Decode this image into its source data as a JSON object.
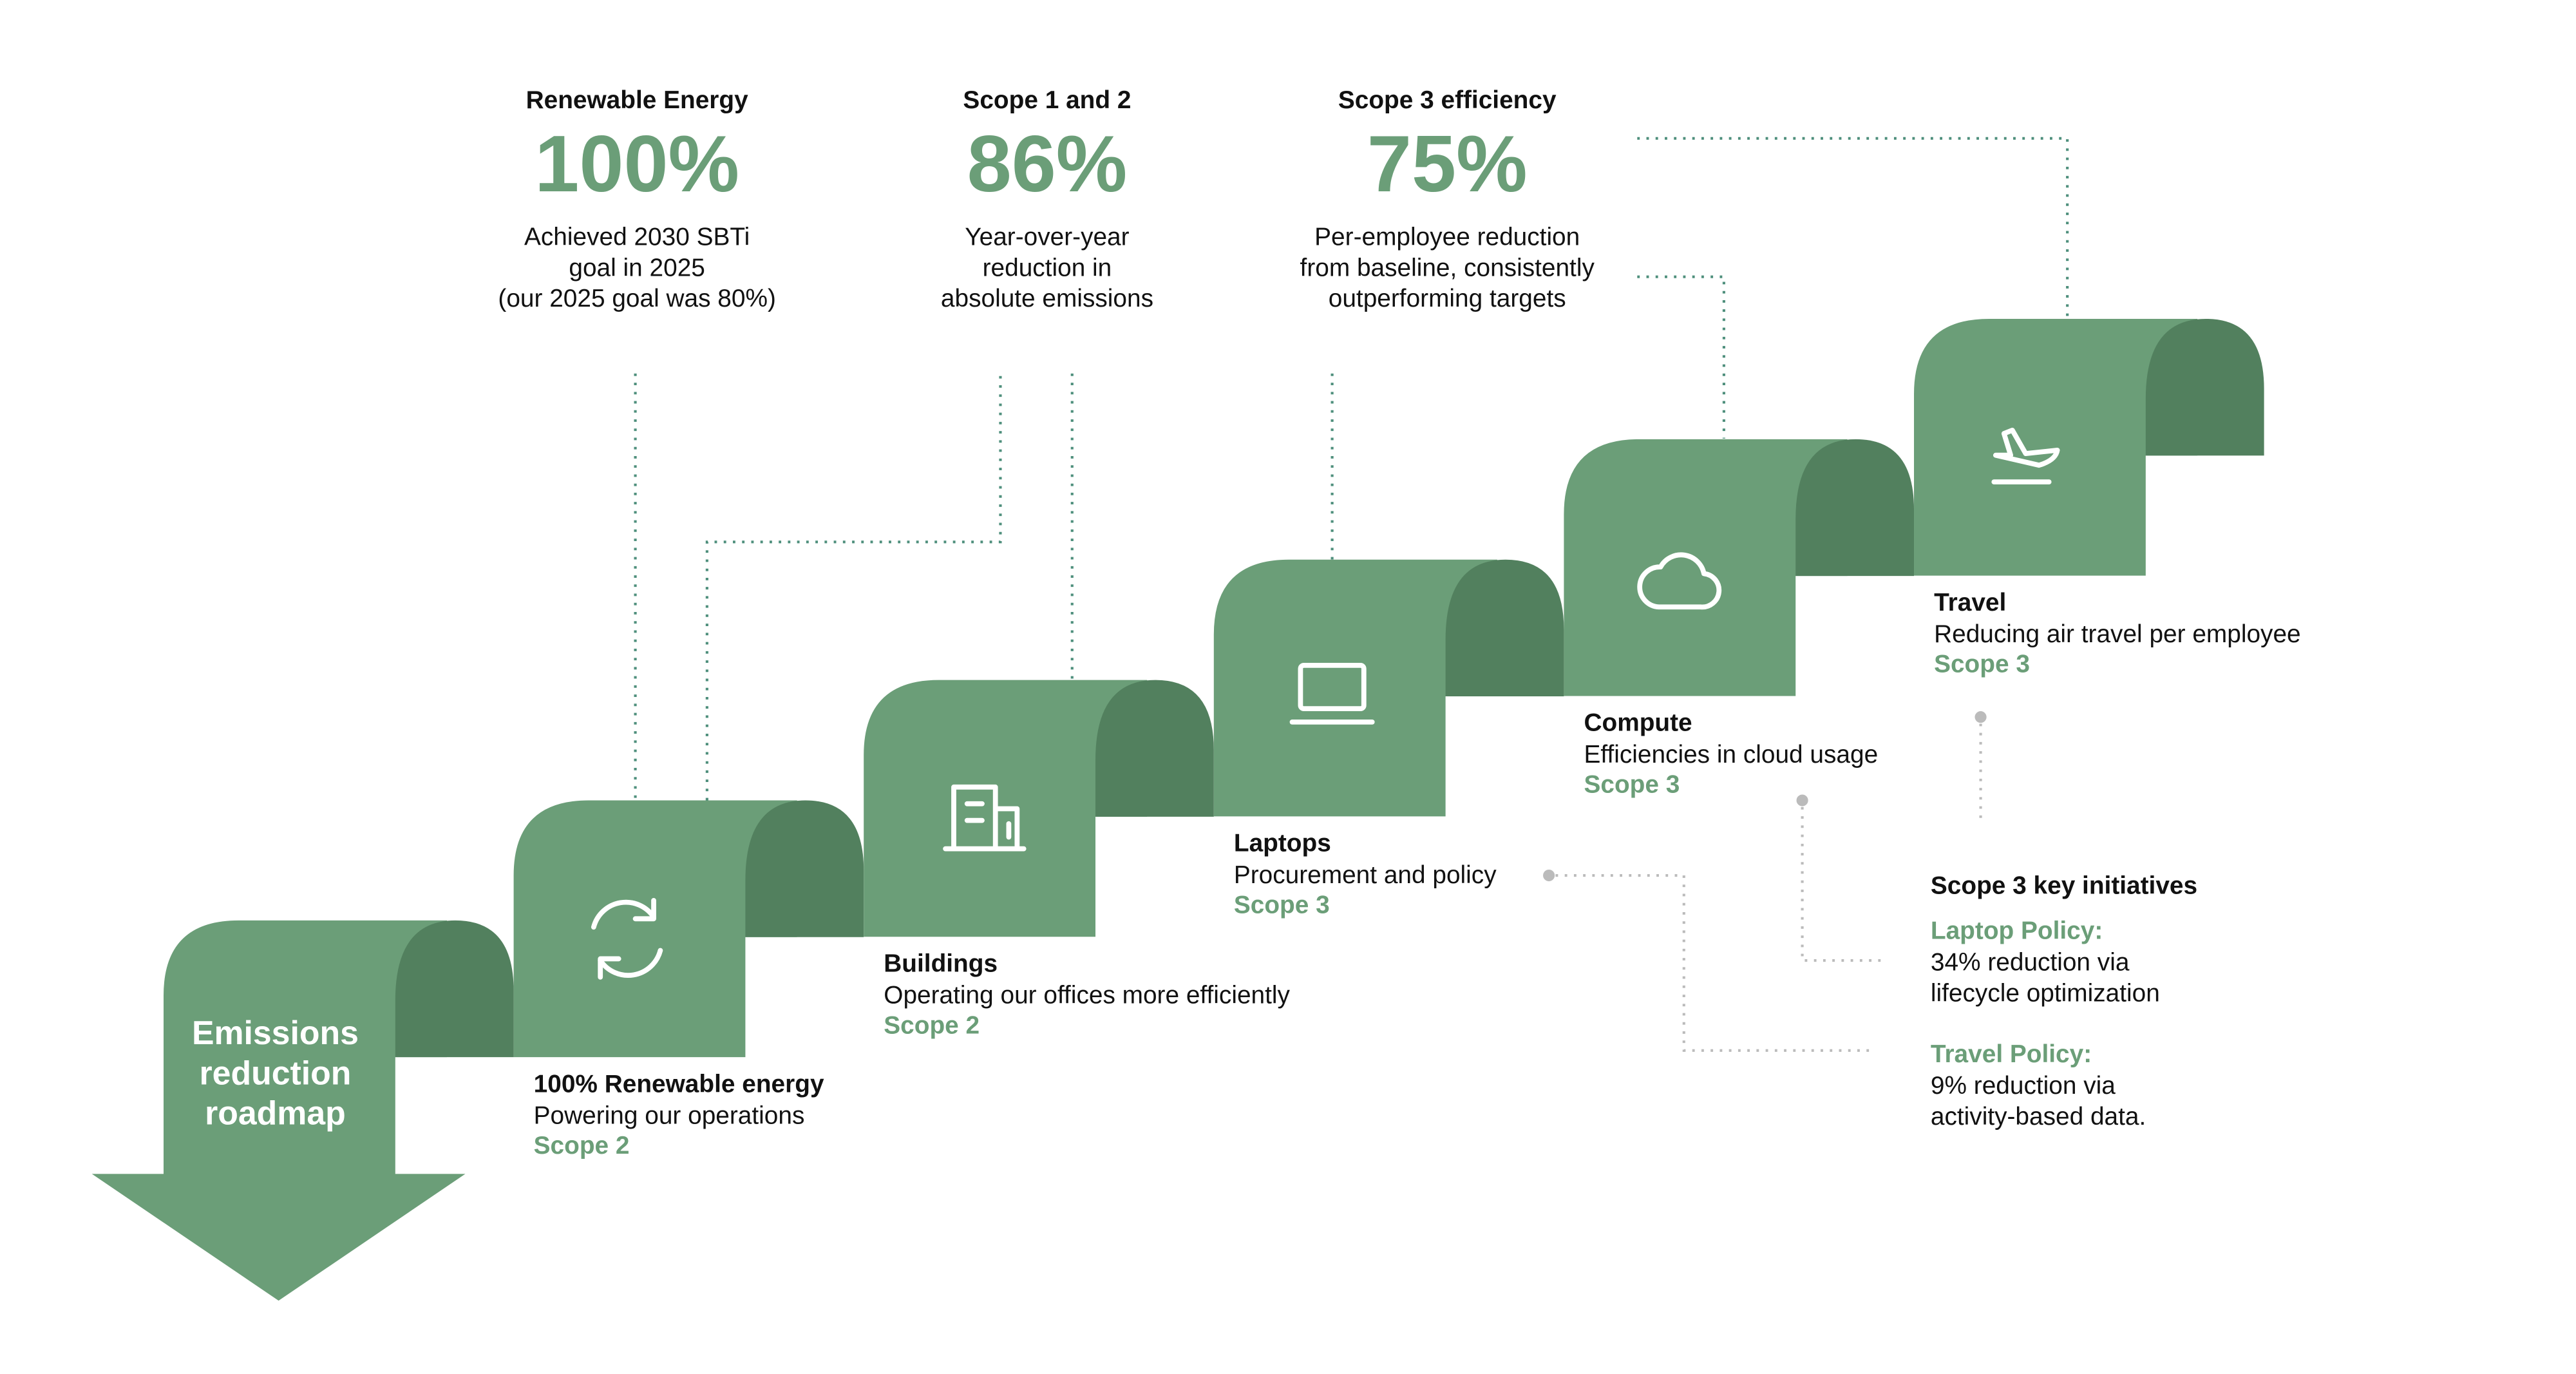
{
  "title": [
    "Emissions",
    "reduction",
    "roadmap"
  ],
  "stats": [
    {
      "heading": "Renewable Energy",
      "value": "100%",
      "description": [
        "Achieved 2030 SBTi",
        "goal in 2025",
        "(our 2025 goal was 80%)"
      ]
    },
    {
      "heading": "Scope 1 and 2",
      "value": "86%",
      "description": [
        "Year-over-year",
        "reduction in",
        "absolute emissions"
      ]
    },
    {
      "heading": "Scope 3 efficiency",
      "value": "75%",
      "description": [
        "Per-employee reduction",
        "from baseline, consistently",
        "outperforming targets"
      ]
    }
  ],
  "steps": [
    {
      "title": "100% Renewable energy",
      "description": "Powering our operations",
      "scope": "Scope 2"
    },
    {
      "title": "Buildings",
      "description": "Operating our offices more efficiently",
      "scope": "Scope 2"
    },
    {
      "title": "Laptops",
      "description": "Procurement and policy",
      "scope": "Scope 3"
    },
    {
      "title": "Compute",
      "description": "Efficiencies in cloud usage",
      "scope": "Scope 3"
    },
    {
      "title": "Travel",
      "description": "Reducing air travel per employee",
      "scope": "Scope 3"
    }
  ],
  "initiatives": {
    "title": "Scope 3 key initiatives",
    "items": [
      {
        "name": "Laptop Policy:",
        "description": [
          "34% reduction via",
          "lifecycle optimization"
        ]
      },
      {
        "name": "Travel Policy:",
        "description": [
          "9% reduction via",
          "activity-based data."
        ]
      }
    ]
  }
}
